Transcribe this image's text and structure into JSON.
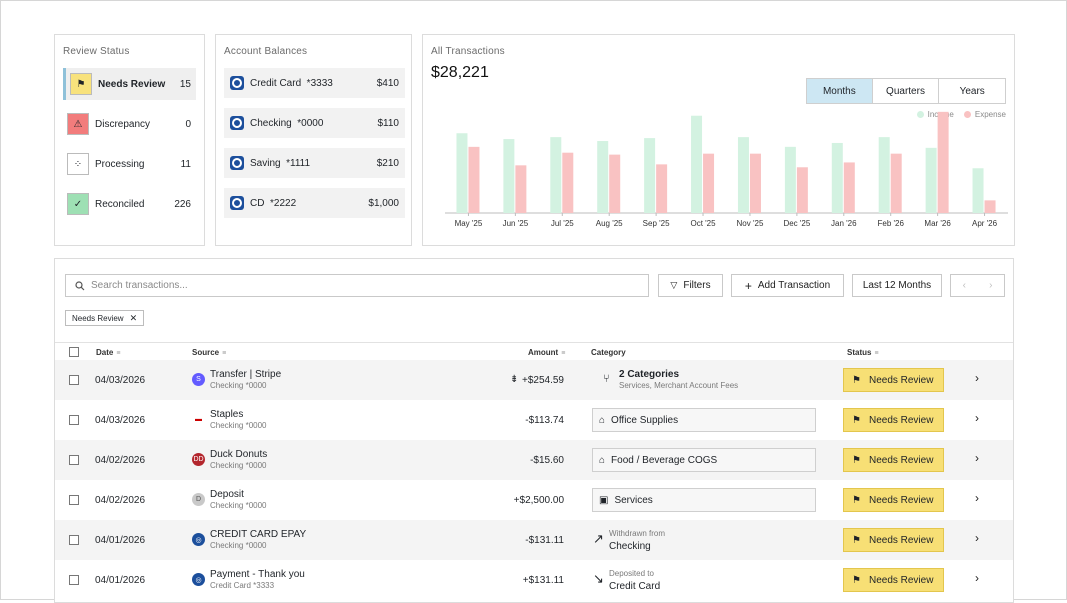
{
  "review_status": {
    "title": "Review Status",
    "items": [
      {
        "label": "Needs Review",
        "count": "15",
        "icon": "flag-icon",
        "bg": "#f8e27c",
        "active": true
      },
      {
        "label": "Discrepancy",
        "count": "0",
        "icon": "warning-icon",
        "bg": "#f27c7c",
        "active": false
      },
      {
        "label": "Processing",
        "count": "11",
        "icon": "spinner-icon",
        "bg": "#ffffff",
        "active": false
      },
      {
        "label": "Reconciled",
        "count": "226",
        "icon": "check-circle-icon",
        "bg": "#9ee0b4",
        "active": false
      }
    ]
  },
  "account_balances": {
    "title": "Account Balances",
    "items": [
      {
        "name": "Credit Card  *3333",
        "value": "$410"
      },
      {
        "name": "Checking  *0000",
        "value": "$110"
      },
      {
        "name": "Saving  *1111",
        "value": "$210"
      },
      {
        "name": "CD  *2222",
        "value": "$1,000"
      }
    ]
  },
  "all_transactions": {
    "title": "All Transactions",
    "total": "$28,221",
    "periods": [
      "Months",
      "Quarters",
      "Years"
    ],
    "active_period": "Months",
    "legend": {
      "income": "Income",
      "expense": "Expense"
    },
    "colors": {
      "income": "#d3f2e1",
      "expense": "#f9c2c2"
    }
  },
  "chart_data": {
    "type": "bar",
    "categories": [
      "May '25",
      "Jun '25",
      "Jul '25",
      "Aug '25",
      "Sep '25",
      "Oct '25",
      "Nov '25",
      "Dec '25",
      "Jan '26",
      "Feb '26",
      "Mar '26",
      "Apr '26"
    ],
    "series": [
      {
        "name": "Income",
        "values": [
          82,
          76,
          78,
          74,
          77,
          100,
          78,
          68,
          72,
          78,
          67,
          46
        ]
      },
      {
        "name": "Expense",
        "values": [
          68,
          49,
          62,
          60,
          50,
          61,
          61,
          47,
          52,
          61,
          104,
          13
        ]
      }
    ],
    "ylim": [
      0,
      110
    ],
    "grid": false,
    "legend_position": "top-right"
  },
  "transactions": {
    "search_placeholder": "Search transactions...",
    "filters_label": "Filters",
    "add_label": "Add Transaction",
    "range_label": "Last 12 Months",
    "prev_icon": "chevron-left-icon",
    "next_icon": "chevron-right-icon",
    "active_filter": "Needs Review",
    "columns": {
      "date": "Date",
      "source": "Source",
      "amount": "Amount",
      "category": "Category",
      "status": "Status"
    },
    "rows": [
      {
        "date": "04/03/2026",
        "source": "Transfer | Stripe",
        "sub": "Checking *0000",
        "src_icon": "S",
        "src_color": "#635bff",
        "amount": "+$254.59",
        "split": true,
        "cat_title": "2 Categories",
        "cat_sub": "Services, Merchant Account Fees",
        "cat_mode": "split",
        "status": "Needs Review"
      },
      {
        "date": "04/03/2026",
        "source": "Staples",
        "sub": "Checking *0000",
        "src_icon": "staples",
        "src_color": "#cc0000",
        "amount": "-$113.74",
        "split": false,
        "cat_title": "Office Supplies",
        "cat_sub": "",
        "cat_mode": "box",
        "cat_icon": "tag-icon",
        "status": "Needs Review"
      },
      {
        "date": "04/02/2026",
        "source": "Duck Donuts",
        "sub": "Checking *0000",
        "src_icon": "DD",
        "src_color": "#b3262d",
        "amount": "-$15.60",
        "split": false,
        "cat_title": "Food / Beverage COGS",
        "cat_sub": "",
        "cat_mode": "box",
        "cat_icon": "tag-icon",
        "status": "Needs Review"
      },
      {
        "date": "04/02/2026",
        "source": "Deposit",
        "sub": "Checking *0000",
        "src_icon": "D",
        "src_color": "#c9c9c9",
        "amount": "+$2,500.00",
        "split": false,
        "cat_title": "Services",
        "cat_sub": "",
        "cat_mode": "box",
        "cat_icon": "briefcase-icon",
        "status": "Needs Review"
      },
      {
        "date": "04/01/2026",
        "source": "CREDIT CARD EPAY",
        "sub": "Checking *0000",
        "src_icon": "bank",
        "src_color": "#1c4f9c",
        "amount": "-$131.11",
        "split": false,
        "cat_title": "Checking",
        "cat_sub": "Withdrawn from",
        "cat_mode": "transfer-out",
        "status": "Needs Review"
      },
      {
        "date": "04/01/2026",
        "source": "Payment - Thank you",
        "sub": "Credit Card *3333",
        "src_icon": "bank",
        "src_color": "#1c4f9c",
        "amount": "+$131.11",
        "split": false,
        "cat_title": "Credit Card",
        "cat_sub": "Deposited to",
        "cat_mode": "transfer-in",
        "status": "Needs Review"
      }
    ]
  }
}
